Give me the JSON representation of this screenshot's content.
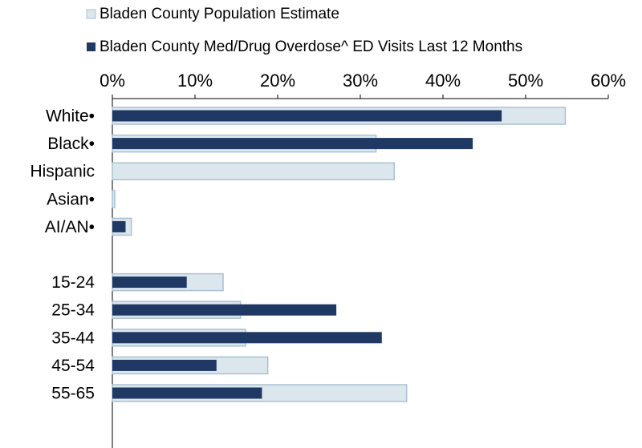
{
  "chart_data": {
    "type": "bar",
    "orientation": "horizontal",
    "x_axis_position": "top",
    "legend_position": "top",
    "grid": false,
    "xlim": [
      0,
      60
    ],
    "x_tick_labels": [
      "0%",
      "10%",
      "20%",
      "30%",
      "40%",
      "50%",
      "60%"
    ],
    "categories": [
      "White•",
      "Black•",
      "Hispanic",
      "Asian•",
      "AI/AN•",
      "",
      "15-24",
      "25-34",
      "35-44",
      "45-54",
      "55-65"
    ],
    "series": [
      {
        "name": "Bladen County Population Estimate",
        "color": "#dce6ed",
        "border_color": "#a9c2d3",
        "values": [
          54.8,
          31.9,
          34.1,
          0.3,
          2.3,
          null,
          13.4,
          15.5,
          16.1,
          18.8,
          35.6
        ]
      },
      {
        "name": "Bladen County Med/Drug Overdose^ ED Visits Last 12 Months",
        "color": "#1f3864",
        "values": [
          47.1,
          43.6,
          0,
          0,
          1.6,
          null,
          9.0,
          27.1,
          32.6,
          12.6,
          18.1
        ]
      }
    ]
  }
}
